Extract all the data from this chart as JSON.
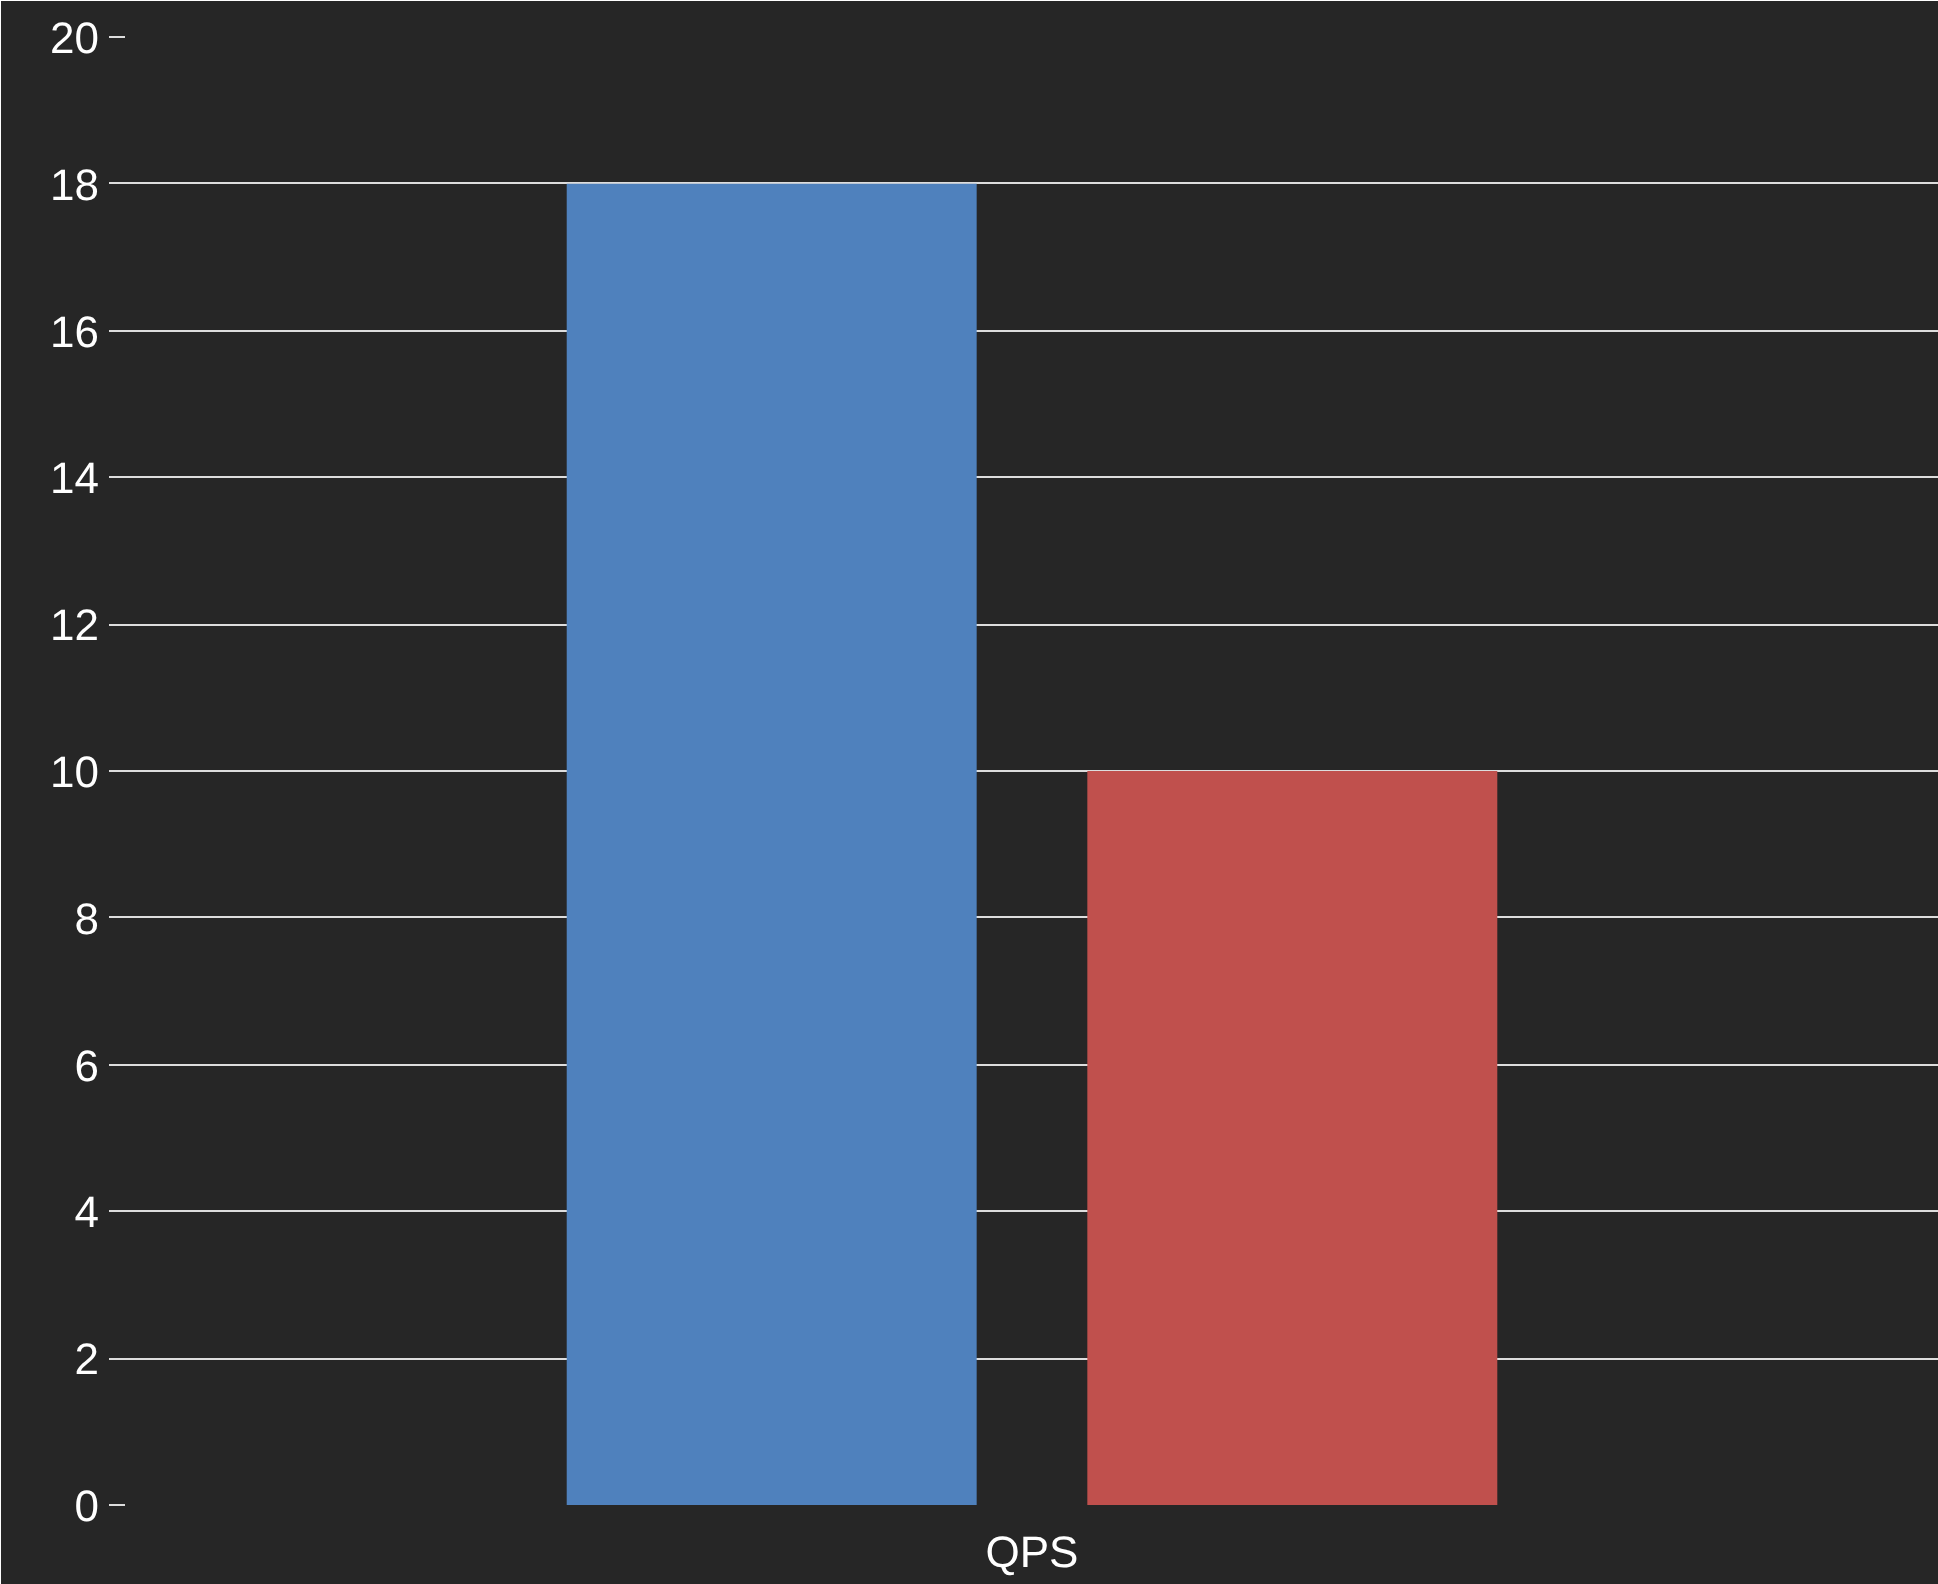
{
  "chart_data": {
    "type": "bar",
    "categories": [
      "QPS"
    ],
    "series": [
      {
        "color": "#4f81bd",
        "values": [
          18
        ]
      },
      {
        "color": "#c0504d",
        "values": [
          10
        ]
      }
    ],
    "ylim": [
      0,
      20
    ],
    "yticks": [
      0,
      2,
      4,
      6,
      8,
      10,
      12,
      14,
      16,
      18,
      20
    ],
    "grid": "y"
  }
}
